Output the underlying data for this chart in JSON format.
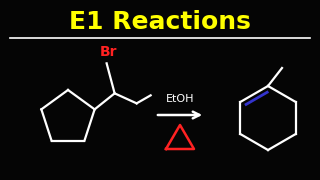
{
  "title": "E1 Reactions",
  "title_color": "#FFFF00",
  "bg_color": "#050505",
  "line_color": "#FFFFFF",
  "br_color": "#FF2222",
  "etoh_color": "#FFFFFF",
  "delta_color": "#FF2222",
  "double_bond_color": "#3333CC",
  "underline_color": "#FFFFFF",
  "title_fontsize": 18,
  "lw": 1.6
}
